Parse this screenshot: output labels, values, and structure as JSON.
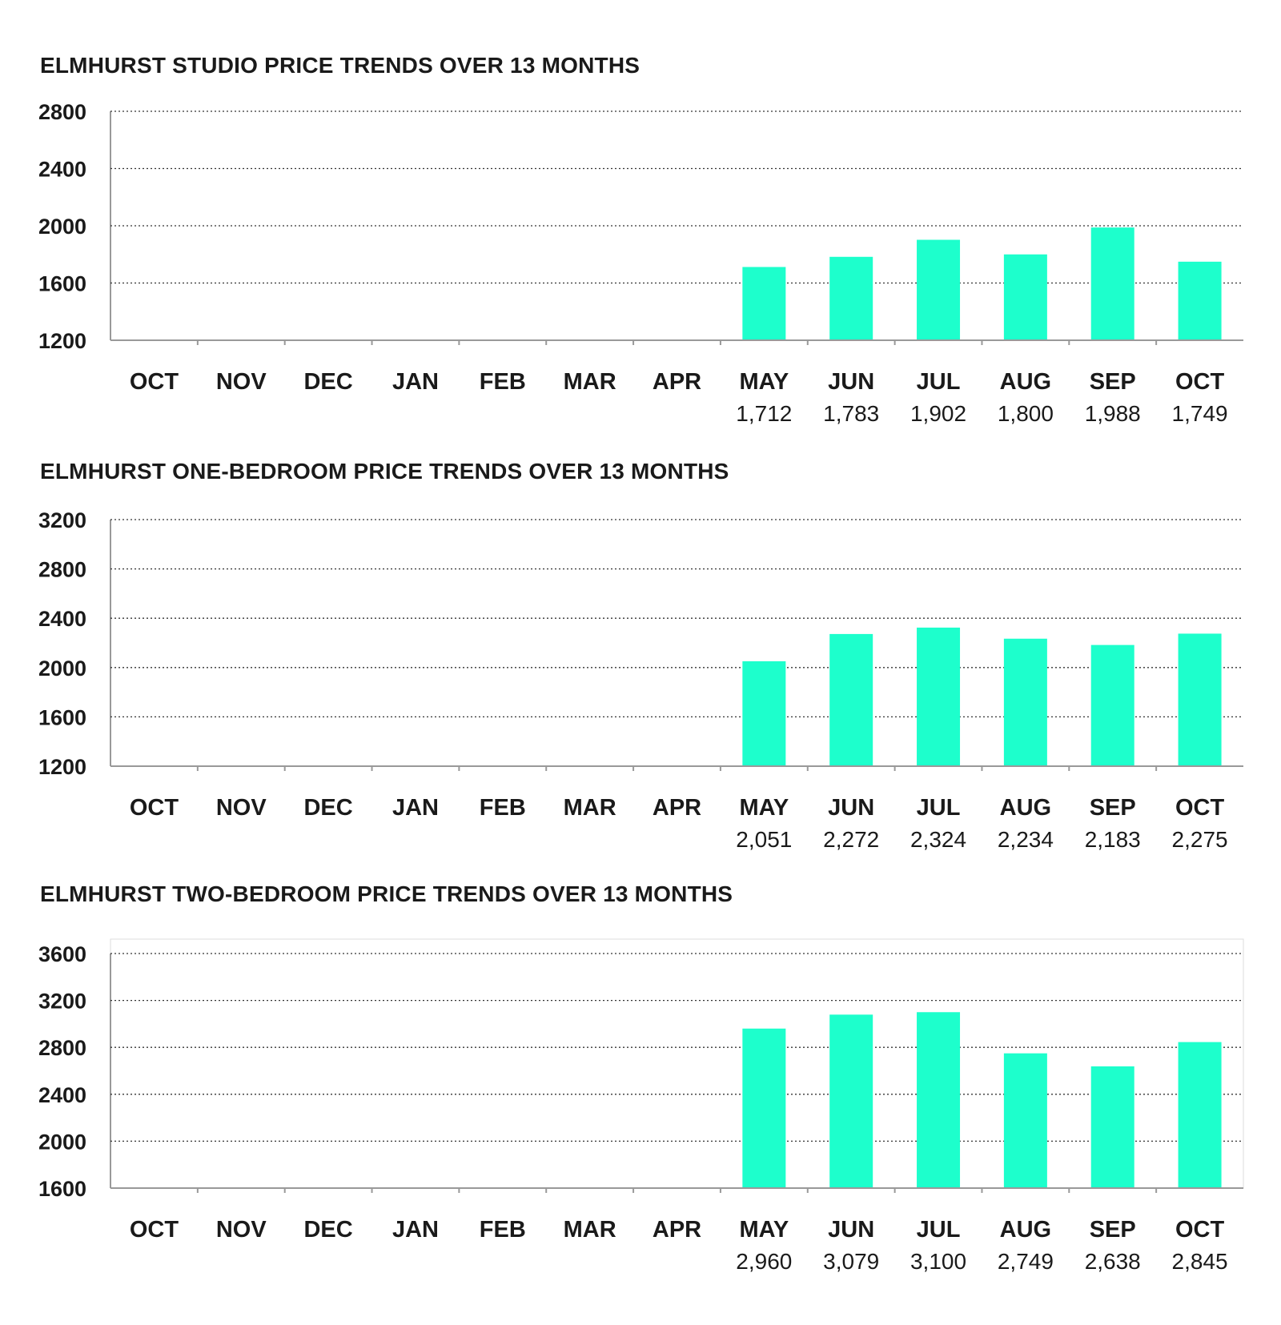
{
  "colors": {
    "bar": "#1dffcc",
    "text": "#1a1a1a",
    "grid": "#333333",
    "axis": "#999999"
  },
  "chart_data": [
    {
      "type": "bar",
      "title": "ELMHURST STUDIO PRICE TRENDS OVER 13 MONTHS",
      "categories": [
        "OCT",
        "NOV",
        "DEC",
        "JAN",
        "FEB",
        "MAR",
        "APR",
        "MAY",
        "JUN",
        "JUL",
        "AUG",
        "SEP",
        "OCT"
      ],
      "values": [
        null,
        null,
        null,
        null,
        null,
        null,
        null,
        1712,
        1783,
        1902,
        1800,
        1988,
        1749
      ],
      "value_labels": [
        "",
        "",
        "",
        "",
        "",
        "",
        "",
        "1,712",
        "1,783",
        "1,902",
        "1,800",
        "1,988",
        "1,749"
      ],
      "yticks": [
        1200,
        1600,
        2000,
        2400,
        2800
      ],
      "ylim": [
        1200,
        2800
      ],
      "xlabel": "",
      "ylabel": "",
      "grid": true
    },
    {
      "type": "bar",
      "title": "ELMHURST ONE-BEDROOM PRICE TRENDS OVER 13 MONTHS",
      "categories": [
        "OCT",
        "NOV",
        "DEC",
        "JAN",
        "FEB",
        "MAR",
        "APR",
        "MAY",
        "JUN",
        "JUL",
        "AUG",
        "SEP",
        "OCT"
      ],
      "values": [
        null,
        null,
        null,
        null,
        null,
        null,
        null,
        2051,
        2272,
        2324,
        2234,
        2183,
        2275
      ],
      "value_labels": [
        "",
        "",
        "",
        "",
        "",
        "",
        "",
        "2,051",
        "2,272",
        "2,324",
        "2,234",
        "2,183",
        "2,275"
      ],
      "yticks": [
        1200,
        1600,
        2000,
        2400,
        2800,
        3200
      ],
      "ylim": [
        1200,
        3200
      ],
      "xlabel": "",
      "ylabel": "",
      "grid": true
    },
    {
      "type": "bar",
      "title": "ELMHURST TWO-BEDROOM PRICE TRENDS OVER 13 MONTHS",
      "categories": [
        "OCT",
        "NOV",
        "DEC",
        "JAN",
        "FEB",
        "MAR",
        "APR",
        "MAY",
        "JUN",
        "JUL",
        "AUG",
        "SEP",
        "OCT"
      ],
      "values": [
        null,
        null,
        null,
        null,
        null,
        null,
        null,
        2960,
        3079,
        3100,
        2749,
        2638,
        2845
      ],
      "value_labels": [
        "",
        "",
        "",
        "",
        "",
        "",
        "",
        "2,960",
        "3,079",
        "3,100",
        "2,749",
        "2,638",
        "2,845"
      ],
      "yticks": [
        1600,
        2000,
        2400,
        2800,
        3200,
        3600
      ],
      "ylim": [
        1600,
        3600
      ],
      "xlabel": "",
      "ylabel": "",
      "grid": true
    }
  ]
}
